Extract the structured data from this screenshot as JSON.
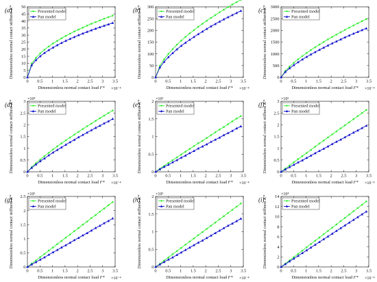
{
  "figure": {
    "xlabel_text": "Dimensionless normal contact load",
    "xlabel_symbol": "F*",
    "ylabel_text": "Dimensionless normal contact stiffness",
    "ylabel_symbol": "K*",
    "legend": [
      "Presented model",
      "Pan model"
    ],
    "colors": {
      "presented": "#33ee33",
      "pan": "#1010cc"
    }
  },
  "chart_data": [
    {
      "type": "line",
      "panel_label": "(a)",
      "x_exp": "×10⁻⁴",
      "y_exp": "",
      "ylim": [
        0,
        50
      ],
      "yticks": [
        0,
        5,
        10,
        15,
        20,
        25,
        30,
        35,
        40,
        45,
        50
      ],
      "xlim": [
        0,
        3.5
      ],
      "xticks": [
        0,
        0.5,
        1,
        1.5,
        2,
        2.5,
        3,
        3.5
      ],
      "x": [
        0,
        0.17,
        0.34,
        0.51,
        0.68,
        0.85,
        1.02,
        1.19,
        1.36,
        1.53,
        1.7,
        1.87,
        2.04,
        2.21,
        2.38,
        2.55,
        2.72,
        2.89,
        3.06,
        3.23,
        3.4
      ],
      "series": [
        {
          "name": "Presented model",
          "values": [
            0,
            9.8,
            13.9,
            17.0,
            19.6,
            21.9,
            24.0,
            25.9,
            27.7,
            29.4,
            31.0,
            32.5,
            33.9,
            35.3,
            36.7,
            38.0,
            39.2,
            40.4,
            41.6,
            42.7,
            43.8
          ]
        },
        {
          "name": "Pan model",
          "values": [
            0,
            8.6,
            12.2,
            15.0,
            17.3,
            19.3,
            21.1,
            22.8,
            24.4,
            25.9,
            27.3,
            28.6,
            29.9,
            31.1,
            32.3,
            33.4,
            34.5,
            35.6,
            36.6,
            37.6,
            38.6
          ]
        }
      ]
    },
    {
      "type": "line",
      "panel_label": "(b)",
      "x_exp": "×10⁻⁴",
      "y_exp": "",
      "ylim": [
        0,
        300
      ],
      "yticks": [
        0,
        50,
        100,
        150,
        200,
        250,
        300
      ],
      "xlim": [
        0,
        3.5
      ],
      "xticks": [
        0,
        0.5,
        1,
        1.5,
        2,
        2.5,
        3,
        3.5
      ],
      "x": [
        0,
        0.17,
        0.34,
        0.51,
        0.68,
        0.85,
        1.02,
        1.19,
        1.36,
        1.53,
        1.7,
        1.87,
        2.04,
        2.21,
        2.38,
        2.55,
        2.72,
        2.89,
        3.06,
        3.23,
        3.4
      ],
      "series": [
        {
          "name": "Presented model",
          "values": [
            0,
            49,
            77,
            100,
            120,
            139,
            156,
            172,
            187,
            201,
            215,
            228,
            241,
            253,
            265,
            277,
            288,
            299,
            310,
            320,
            330
          ]
        },
        {
          "name": "Pan model",
          "values": [
            0,
            42,
            66,
            86,
            103,
            119,
            134,
            147,
            160,
            172,
            184,
            195,
            206,
            217,
            227,
            237,
            247,
            256,
            265,
            274,
            283
          ]
        }
      ]
    },
    {
      "type": "line",
      "panel_label": "(c)",
      "x_exp": "×10⁻⁴",
      "y_exp": "",
      "ylim": [
        0,
        3000
      ],
      "yticks": [
        0,
        500,
        1000,
        1500,
        2000,
        2500,
        3000
      ],
      "xlim": [
        0,
        3.5
      ],
      "xticks": [
        0,
        0.5,
        1,
        1.5,
        2,
        2.5,
        3,
        3.5
      ],
      "x": [
        0,
        0.17,
        0.34,
        0.51,
        0.68,
        0.85,
        1.02,
        1.19,
        1.36,
        1.53,
        1.7,
        1.87,
        2.04,
        2.21,
        2.38,
        2.55,
        2.72,
        2.89,
        3.06,
        3.23,
        3.4
      ],
      "series": [
        {
          "name": "Presented model",
          "values": [
            0,
            275,
            460,
            620,
            770,
            905,
            1035,
            1160,
            1280,
            1395,
            1505,
            1615,
            1720,
            1820,
            1920,
            2020,
            2115,
            2210,
            2300,
            2390,
            2480
          ]
        },
        {
          "name": "Pan model",
          "values": [
            0,
            230,
            385,
            520,
            645,
            760,
            870,
            975,
            1075,
            1170,
            1265,
            1355,
            1445,
            1530,
            1615,
            1700,
            1780,
            1860,
            1935,
            2010,
            2085
          ]
        }
      ]
    },
    {
      "type": "line",
      "panel_label": "(d)",
      "x_exp": "×10⁻⁴",
      "y_exp": "×10⁴",
      "ylim": [
        0,
        3
      ],
      "yticks": [
        0,
        0.5,
        1,
        1.5,
        2,
        2.5,
        3
      ],
      "xlim": [
        0,
        3.5
      ],
      "xticks": [
        0,
        0.5,
        1,
        1.5,
        2,
        2.5,
        3,
        3.5
      ],
      "x": [
        0,
        0.17,
        0.34,
        0.51,
        0.68,
        0.85,
        1.02,
        1.19,
        1.36,
        1.53,
        1.7,
        1.87,
        2.04,
        2.21,
        2.38,
        2.55,
        2.72,
        2.89,
        3.06,
        3.23,
        3.4
      ],
      "series": [
        {
          "name": "Presented model",
          "values": [
            0,
            0.2,
            0.37,
            0.52,
            0.67,
            0.81,
            0.95,
            1.08,
            1.21,
            1.34,
            1.46,
            1.58,
            1.7,
            1.82,
            1.94,
            2.05,
            2.17,
            2.28,
            2.39,
            2.5,
            2.61
          ]
        },
        {
          "name": "Pan model",
          "values": [
            0,
            0.17,
            0.31,
            0.45,
            0.57,
            0.7,
            0.82,
            0.93,
            1.04,
            1.15,
            1.26,
            1.36,
            1.47,
            1.57,
            1.67,
            1.77,
            1.87,
            1.96,
            2.06,
            2.15,
            2.25
          ]
        }
      ]
    },
    {
      "type": "line",
      "panel_label": "(e)",
      "x_exp": "×10⁻⁴",
      "y_exp": "×10⁵",
      "ylim": [
        0,
        2
      ],
      "yticks": [
        0,
        0.5,
        1,
        1.5,
        2
      ],
      "xlim": [
        0,
        3.5
      ],
      "xticks": [
        0,
        0.5,
        1,
        1.5,
        2,
        2.5,
        3,
        3.5
      ],
      "x": [
        0,
        0.17,
        0.34,
        0.51,
        0.68,
        0.85,
        1.02,
        1.19,
        1.36,
        1.53,
        1.7,
        1.87,
        2.04,
        2.21,
        2.38,
        2.55,
        2.72,
        2.89,
        3.06,
        3.23,
        3.4
      ],
      "series": [
        {
          "name": "Presented model",
          "values": [
            0,
            0.09,
            0.17,
            0.25,
            0.33,
            0.41,
            0.49,
            0.57,
            0.65,
            0.73,
            0.81,
            0.88,
            0.96,
            1.04,
            1.12,
            1.2,
            1.27,
            1.35,
            1.43,
            1.51,
            1.58
          ]
        },
        {
          "name": "Pan model",
          "values": [
            0,
            0.07,
            0.14,
            0.2,
            0.27,
            0.33,
            0.4,
            0.46,
            0.53,
            0.59,
            0.66,
            0.72,
            0.78,
            0.85,
            0.91,
            0.97,
            1.04,
            1.1,
            1.16,
            1.23,
            1.29
          ]
        }
      ]
    },
    {
      "type": "line",
      "panel_label": "(f)",
      "x_exp": "×10⁻⁴",
      "y_exp": "×10⁵",
      "ylim": [
        0,
        3
      ],
      "yticks": [
        0,
        0.5,
        1,
        1.5,
        2,
        2.5,
        3
      ],
      "xlim": [
        0,
        3.5
      ],
      "xticks": [
        0,
        0.5,
        1,
        1.5,
        2,
        2.5,
        3,
        3.5
      ],
      "x": [
        0,
        0.17,
        0.34,
        0.51,
        0.68,
        0.85,
        1.02,
        1.19,
        1.36,
        1.53,
        1.7,
        1.87,
        2.04,
        2.21,
        2.38,
        2.55,
        2.72,
        2.89,
        3.06,
        3.23,
        3.4
      ],
      "series": [
        {
          "name": "Presented model",
          "values": [
            0,
            0.14,
            0.27,
            0.41,
            0.54,
            0.67,
            0.8,
            0.93,
            1.07,
            1.2,
            1.33,
            1.46,
            1.59,
            1.72,
            1.85,
            1.98,
            2.11,
            2.24,
            2.37,
            2.5,
            2.63
          ]
        },
        {
          "name": "Pan model",
          "values": [
            0,
            0.1,
            0.2,
            0.3,
            0.4,
            0.49,
            0.59,
            0.69,
            0.79,
            0.89,
            0.98,
            1.08,
            1.18,
            1.28,
            1.37,
            1.47,
            1.57,
            1.67,
            1.76,
            1.86,
            1.96
          ]
        }
      ]
    },
    {
      "type": "line",
      "panel_label": "(g)",
      "x_exp": "×10⁻⁴",
      "y_exp": "×10⁵",
      "ylim": [
        0,
        2.5
      ],
      "yticks": [
        0,
        0.5,
        1,
        1.5,
        2,
        2.5
      ],
      "xlim": [
        0,
        3.5
      ],
      "xticks": [
        0,
        0.5,
        1,
        1.5,
        2,
        2.5,
        3,
        3.5
      ],
      "x": [
        0,
        0.17,
        0.34,
        0.51,
        0.68,
        0.85,
        1.02,
        1.19,
        1.36,
        1.53,
        1.7,
        1.87,
        2.04,
        2.21,
        2.38,
        2.55,
        2.72,
        2.89,
        3.06,
        3.23,
        3.4
      ],
      "series": [
        {
          "name": "Presented model",
          "values": [
            0,
            0.12,
            0.23,
            0.35,
            0.46,
            0.58,
            0.69,
            0.81,
            0.92,
            1.04,
            1.15,
            1.27,
            1.38,
            1.5,
            1.61,
            1.73,
            1.84,
            1.96,
            2.07,
            2.19,
            2.3
          ]
        },
        {
          "name": "Pan model",
          "values": [
            0,
            0.09,
            0.17,
            0.26,
            0.34,
            0.43,
            0.52,
            0.6,
            0.69,
            0.77,
            0.86,
            0.95,
            1.03,
            1.12,
            1.2,
            1.29,
            1.38,
            1.46,
            1.55,
            1.63,
            1.72
          ]
        }
      ]
    },
    {
      "type": "line",
      "panel_label": "(h)",
      "x_exp": "×10⁻⁴",
      "y_exp": "×10⁵",
      "ylim": [
        0,
        2
      ],
      "yticks": [
        0,
        0.5,
        1,
        1.5,
        2
      ],
      "xlim": [
        0,
        3.5
      ],
      "xticks": [
        0,
        0.5,
        1,
        1.5,
        2,
        2.5,
        3,
        3.5
      ],
      "x": [
        0,
        0.17,
        0.34,
        0.51,
        0.68,
        0.85,
        1.02,
        1.19,
        1.36,
        1.53,
        1.7,
        1.87,
        2.04,
        2.21,
        2.38,
        2.55,
        2.72,
        2.89,
        3.06,
        3.23,
        3.4
      ],
      "series": [
        {
          "name": "Presented model",
          "values": [
            0,
            0.09,
            0.18,
            0.27,
            0.36,
            0.45,
            0.54,
            0.63,
            0.72,
            0.81,
            0.9,
            0.99,
            1.08,
            1.17,
            1.26,
            1.35,
            1.44,
            1.53,
            1.62,
            1.71,
            1.8
          ]
        },
        {
          "name": "Pan model",
          "values": [
            0,
            0.07,
            0.14,
            0.21,
            0.27,
            0.34,
            0.41,
            0.48,
            0.55,
            0.62,
            0.69,
            0.75,
            0.82,
            0.89,
            0.96,
            1.03,
            1.1,
            1.17,
            1.23,
            1.3,
            1.37
          ]
        }
      ]
    },
    {
      "type": "line",
      "panel_label": "(i)",
      "x_exp": "×10⁻⁴",
      "y_exp": "×10⁴",
      "ylim": [
        0,
        14
      ],
      "yticks": [
        0,
        2,
        4,
        6,
        8,
        10,
        12,
        14
      ],
      "xlim": [
        0,
        3.5
      ],
      "xticks": [
        0,
        0.5,
        1,
        1.5,
        2,
        2.5,
        3,
        3.5
      ],
      "x": [
        0,
        0.17,
        0.34,
        0.51,
        0.68,
        0.85,
        1.02,
        1.19,
        1.36,
        1.53,
        1.7,
        1.87,
        2.04,
        2.21,
        2.38,
        2.55,
        2.72,
        2.89,
        3.06,
        3.23,
        3.4
      ],
      "series": [
        {
          "name": "Presented model",
          "values": [
            0,
            0.66,
            1.3,
            1.95,
            2.6,
            3.25,
            3.9,
            4.55,
            5.2,
            5.85,
            6.5,
            7.15,
            7.8,
            8.45,
            9.1,
            9.75,
            10.4,
            11.05,
            11.7,
            12.35,
            13.0
          ]
        },
        {
          "name": "Pan model",
          "values": [
            0,
            0.55,
            1.1,
            1.65,
            2.2,
            2.75,
            3.3,
            3.85,
            4.4,
            4.95,
            5.5,
            6.05,
            6.6,
            7.15,
            7.7,
            8.25,
            8.8,
            9.35,
            9.9,
            10.45,
            11.0
          ]
        }
      ]
    }
  ]
}
